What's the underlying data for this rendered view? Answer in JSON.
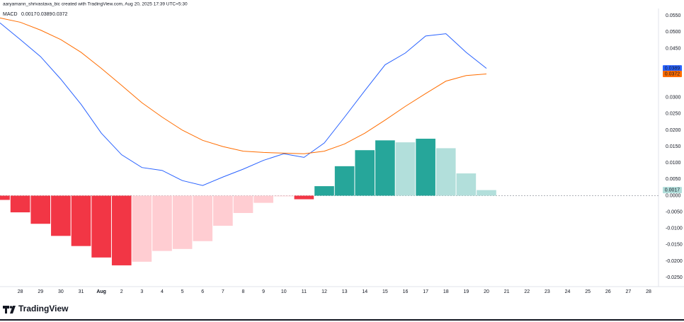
{
  "header": "aaryamann_shrivastava_bic created with TradingView.com, Aug 20, 2025 17:39 UTC+5:30",
  "brand": "TradingView",
  "chart_data": {
    "type": "macd",
    "legend_title": "MACD",
    "categories": [
      null,
      "28",
      "29",
      "30",
      "31",
      "Aug",
      "2",
      "3",
      "4",
      "5",
      "6",
      "7",
      "8",
      "9",
      "10",
      "11",
      "12",
      "13",
      "14",
      "15",
      "16",
      "17",
      "18",
      "19",
      "20",
      "21",
      "22",
      "23",
      "24",
      "25",
      "26",
      "27",
      "28"
    ],
    "series": [
      {
        "kind": "bar",
        "color": "#26a69a",
        "last_label": "0.0017",
        "values": [
          -0.0013,
          -0.0051,
          -0.0086,
          -0.0123,
          -0.0154,
          -0.0189,
          -0.0213,
          -0.0202,
          -0.0169,
          -0.0163,
          -0.0139,
          -0.0092,
          -0.0053,
          -0.0022,
          -0.0002,
          -0.0011,
          0.0029,
          0.009,
          0.0139,
          0.0169,
          0.0163,
          0.0174,
          0.0145,
          0.0068,
          0.0017,
          null,
          null,
          null,
          null,
          null,
          null,
          null,
          null
        ],
        "colors": [
          "#f23645",
          "#f23645",
          "#f23645",
          "#f23645",
          "#f23645",
          "#f23645",
          "#f23645",
          "#ffcdd2",
          "#ffcdd2",
          "#ffcdd2",
          "#ffcdd2",
          "#ffcdd2",
          "#ffcdd2",
          "#ffcdd2",
          "#ffcdd2",
          "#f23645",
          "#26a69a",
          "#26a69a",
          "#26a69a",
          "#26a69a",
          "#b2dfdb",
          "#26a69a",
          "#b2dfdb",
          "#b2dfdb",
          "#b2dfdb",
          null,
          null,
          null,
          null,
          null,
          null,
          null,
          null
        ],
        "label_color": "#b2dfdb"
      },
      {
        "kind": "line",
        "color": "#2962ff",
        "last_label": "0.0389",
        "values": [
          0.0528,
          0.0477,
          0.0425,
          0.0356,
          0.0279,
          0.0191,
          0.0125,
          0.0086,
          0.0077,
          0.0046,
          0.0031,
          0.0057,
          0.0081,
          0.0108,
          0.0128,
          0.0117,
          0.0161,
          0.024,
          0.0321,
          0.04,
          0.0436,
          0.0488,
          0.0495,
          0.0438,
          0.0389,
          null,
          null,
          null,
          null,
          null,
          null,
          null,
          null
        ]
      },
      {
        "kind": "line",
        "color": "#ff6d00",
        "last_label": "0.0372",
        "values": [
          0.0543,
          0.053,
          0.0506,
          0.0477,
          0.0438,
          0.0389,
          0.0337,
          0.0284,
          0.024,
          0.02,
          0.0169,
          0.015,
          0.0136,
          0.0132,
          0.013,
          0.0128,
          0.0136,
          0.0158,
          0.0191,
          0.0231,
          0.0273,
          0.0312,
          0.035,
          0.0367,
          0.0372,
          null,
          null,
          null,
          null,
          null,
          null,
          null,
          null
        ]
      }
    ],
    "ylim": [
      -0.0278,
      0.0572
    ],
    "yticks": [
      {
        "value": 0.055,
        "label": "0.0550"
      },
      {
        "value": 0.05,
        "label": "0.0500"
      },
      {
        "value": 0.045,
        "label": "0.0450"
      },
      {
        "value": 0.03,
        "label": "0.0300"
      },
      {
        "value": 0.025,
        "label": "0.0250"
      },
      {
        "value": 0.02,
        "label": "0.0200"
      },
      {
        "value": 0.015,
        "label": "0.0150"
      },
      {
        "value": 0.01,
        "label": "0.0100"
      },
      {
        "value": 0.005,
        "label": "0.0050"
      },
      {
        "value": 0,
        "label": "0.0000"
      },
      {
        "value": -0.005,
        "label": "-0.0050"
      },
      {
        "value": -0.01,
        "label": "-0.0100"
      },
      {
        "value": -0.015,
        "label": "-0.0150"
      },
      {
        "value": -0.02,
        "label": "-0.0200"
      },
      {
        "value": -0.025,
        "label": "-0.0250"
      }
    ],
    "zero_line": true
  }
}
